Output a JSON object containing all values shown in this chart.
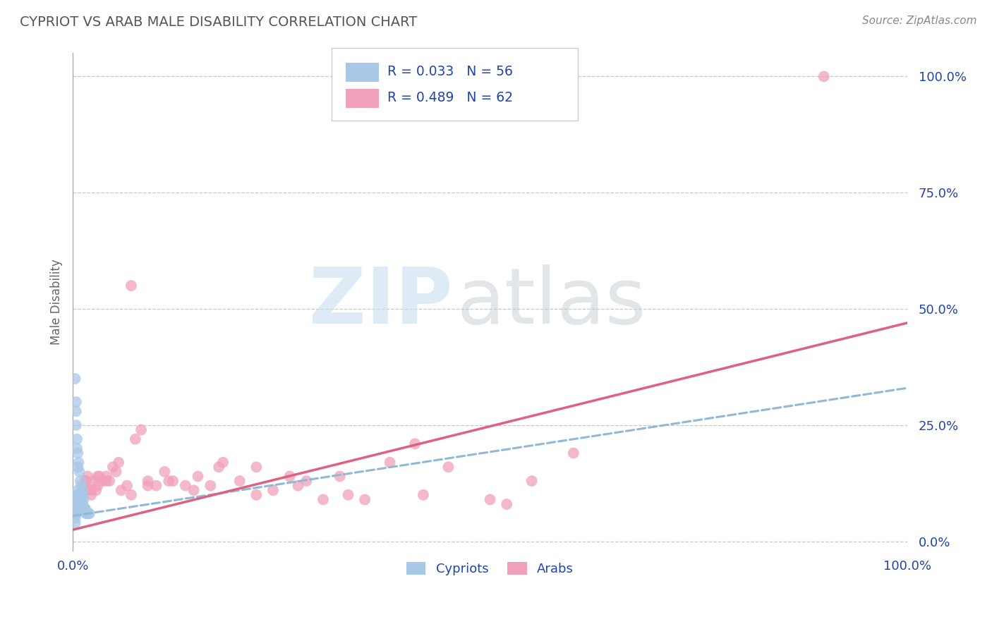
{
  "title": "CYPRIOT VS ARAB MALE DISABILITY CORRELATION CHART",
  "source": "Source: ZipAtlas.com",
  "ylabel": "Male Disability",
  "xlabel": "",
  "xlim": [
    0.0,
    1.0
  ],
  "ylim": [
    -0.02,
    1.05
  ],
  "xtick_labels": [
    "0.0%",
    "100.0%"
  ],
  "ytick_labels": [
    "0.0%",
    "25.0%",
    "50.0%",
    "75.0%",
    "100.0%"
  ],
  "ytick_positions": [
    0.0,
    0.25,
    0.5,
    0.75,
    1.0
  ],
  "grid_color": "#c8c8c8",
  "background_color": "#ffffff",
  "cypriot_color": "#a8c8e8",
  "arab_color": "#f0a0b8",
  "cypriot_line_color": "#90b8d8",
  "arab_line_color": "#e06080",
  "cypriot_R": 0.033,
  "cypriot_N": 56,
  "arab_R": 0.489,
  "arab_N": 62,
  "text_color": "#2244aa",
  "title_color": "#555555",
  "cypriot_line_start_y": 0.055,
  "cypriot_line_end_y": 0.33,
  "arab_line_start_y": 0.025,
  "arab_line_end_y": 0.47,
  "cypriot_scatter_x": [
    0.003,
    0.003,
    0.003,
    0.003,
    0.003,
    0.004,
    0.004,
    0.004,
    0.004,
    0.005,
    0.005,
    0.005,
    0.005,
    0.005,
    0.006,
    0.006,
    0.006,
    0.006,
    0.007,
    0.007,
    0.007,
    0.008,
    0.008,
    0.008,
    0.009,
    0.009,
    0.009,
    0.01,
    0.01,
    0.01,
    0.011,
    0.012,
    0.012,
    0.013,
    0.014,
    0.015,
    0.016,
    0.017,
    0.019,
    0.02,
    0.003,
    0.004,
    0.005,
    0.006,
    0.007,
    0.008,
    0.009,
    0.01,
    0.011,
    0.012,
    0.013,
    0.015,
    0.004,
    0.004,
    0.005,
    0.006
  ],
  "cypriot_scatter_y": [
    0.08,
    0.07,
    0.06,
    0.05,
    0.04,
    0.09,
    0.08,
    0.07,
    0.06,
    0.1,
    0.09,
    0.08,
    0.07,
    0.06,
    0.11,
    0.1,
    0.09,
    0.08,
    0.1,
    0.09,
    0.08,
    0.1,
    0.09,
    0.08,
    0.1,
    0.09,
    0.08,
    0.09,
    0.08,
    0.07,
    0.08,
    0.08,
    0.07,
    0.07,
    0.07,
    0.07,
    0.06,
    0.06,
    0.06,
    0.06,
    0.35,
    0.28,
    0.22,
    0.19,
    0.17,
    0.15,
    0.13,
    0.12,
    0.11,
    0.1,
    0.09,
    0.07,
    0.3,
    0.25,
    0.2,
    0.16
  ],
  "arab_scatter_x": [
    0.004,
    0.006,
    0.008,
    0.01,
    0.012,
    0.015,
    0.018,
    0.02,
    0.022,
    0.025,
    0.028,
    0.03,
    0.032,
    0.035,
    0.04,
    0.044,
    0.048,
    0.052,
    0.058,
    0.065,
    0.07,
    0.075,
    0.082,
    0.09,
    0.1,
    0.11,
    0.12,
    0.135,
    0.15,
    0.165,
    0.18,
    0.2,
    0.22,
    0.24,
    0.26,
    0.28,
    0.3,
    0.32,
    0.35,
    0.38,
    0.41,
    0.45,
    0.5,
    0.55,
    0.6,
    0.01,
    0.016,
    0.022,
    0.03,
    0.04,
    0.055,
    0.07,
    0.09,
    0.115,
    0.145,
    0.175,
    0.22,
    0.27,
    0.33,
    0.42,
    0.52,
    0.9
  ],
  "arab_scatter_y": [
    0.08,
    0.09,
    0.1,
    0.09,
    0.12,
    0.13,
    0.14,
    0.11,
    0.1,
    0.13,
    0.11,
    0.12,
    0.14,
    0.13,
    0.14,
    0.13,
    0.16,
    0.15,
    0.11,
    0.12,
    0.55,
    0.22,
    0.24,
    0.13,
    0.12,
    0.15,
    0.13,
    0.12,
    0.14,
    0.12,
    0.17,
    0.13,
    0.16,
    0.11,
    0.14,
    0.13,
    0.09,
    0.14,
    0.09,
    0.17,
    0.21,
    0.16,
    0.09,
    0.13,
    0.19,
    0.1,
    0.13,
    0.11,
    0.14,
    0.13,
    0.17,
    0.1,
    0.12,
    0.13,
    0.11,
    0.16,
    0.1,
    0.12,
    0.1,
    0.1,
    0.08,
    1.0
  ]
}
